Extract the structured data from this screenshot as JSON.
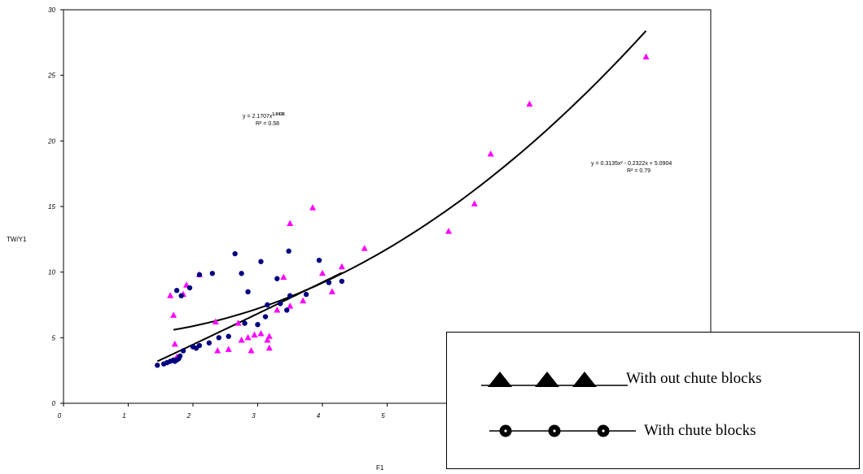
{
  "chart_data": {
    "type": "scatter",
    "title": "",
    "xlabel": "F1",
    "ylabel": "TW/Y1",
    "xlim": [
      0,
      10
    ],
    "ylim": [
      0,
      30
    ],
    "xticks": [
      "0",
      "1",
      "2",
      "3",
      "4",
      "5"
    ],
    "yticks": [
      "0",
      "5",
      "10",
      "15",
      "20",
      "25",
      "30"
    ],
    "grid": false,
    "legend_placement": "bottom-right",
    "series": [
      {
        "name": "With out chute blocks",
        "marker": "triangle",
        "color": "#ff00ff",
        "points": [
          [
            1.65,
            8.2
          ],
          [
            1.7,
            6.7
          ],
          [
            1.72,
            4.5
          ],
          [
            1.75,
            3.5
          ],
          [
            1.85,
            8.3
          ],
          [
            1.9,
            9.0
          ],
          [
            2.1,
            9.8
          ],
          [
            2.35,
            6.2
          ],
          [
            2.38,
            4.0
          ],
          [
            2.55,
            4.1
          ],
          [
            2.7,
            6.1
          ],
          [
            2.75,
            4.8
          ],
          [
            2.85,
            5.0
          ],
          [
            2.9,
            4.0
          ],
          [
            2.95,
            5.2
          ],
          [
            3.05,
            5.3
          ],
          [
            3.15,
            4.8
          ],
          [
            3.18,
            5.1
          ],
          [
            3.18,
            4.2
          ],
          [
            3.3,
            7.1
          ],
          [
            3.4,
            9.6
          ],
          [
            3.5,
            13.7
          ],
          [
            3.5,
            7.4
          ],
          [
            3.7,
            7.8
          ],
          [
            3.85,
            14.9
          ],
          [
            4.0,
            9.9
          ],
          [
            4.15,
            8.5
          ],
          [
            4.3,
            10.4
          ],
          [
            4.65,
            11.8
          ],
          [
            5.95,
            13.1
          ],
          [
            6.35,
            15.2
          ],
          [
            6.6,
            19.0
          ],
          [
            7.2,
            22.8
          ],
          [
            9.0,
            26.4
          ]
        ]
      },
      {
        "name": "With chute blocks",
        "marker": "circle",
        "color": "#000080",
        "points": [
          [
            1.45,
            2.9
          ],
          [
            1.55,
            3.0
          ],
          [
            1.6,
            3.1
          ],
          [
            1.65,
            3.2
          ],
          [
            1.7,
            3.3
          ],
          [
            1.72,
            3.2
          ],
          [
            1.75,
            3.3
          ],
          [
            1.78,
            3.4
          ],
          [
            1.8,
            3.6
          ],
          [
            1.85,
            4.0
          ],
          [
            1.75,
            8.6
          ],
          [
            1.82,
            8.2
          ],
          [
            2.0,
            4.3
          ],
          [
            2.05,
            4.2
          ],
          [
            1.95,
            8.8
          ],
          [
            2.1,
            4.4
          ],
          [
            2.1,
            9.8
          ],
          [
            2.25,
            4.6
          ],
          [
            2.3,
            9.9
          ],
          [
            2.4,
            5.0
          ],
          [
            2.55,
            5.1
          ],
          [
            2.65,
            11.4
          ],
          [
            2.75,
            9.9
          ],
          [
            2.8,
            6.1
          ],
          [
            2.85,
            8.5
          ],
          [
            3.0,
            6.0
          ],
          [
            3.05,
            10.8
          ],
          [
            3.12,
            6.6
          ],
          [
            3.15,
            7.5
          ],
          [
            3.3,
            9.5
          ],
          [
            3.35,
            7.6
          ],
          [
            3.45,
            7.1
          ],
          [
            3.48,
            11.6
          ],
          [
            3.5,
            8.2
          ],
          [
            3.75,
            8.3
          ],
          [
            3.95,
            10.9
          ],
          [
            4.1,
            9.2
          ],
          [
            4.3,
            9.3
          ]
        ]
      }
    ],
    "trendlines": [
      {
        "series": "With out chute blocks",
        "kind": "polynomial",
        "equation": "y = 0.3135x² - 0.2322x + 5.0904",
        "r2": "R² = 0.79",
        "coef": [
          0.3135,
          -0.2322,
          5.0904
        ],
        "x_range": [
          1.7,
          9.0
        ]
      },
      {
        "series": "With chute blocks",
        "kind": "power",
        "equation": "y = 2.1707x",
        "exponent_label": "1.0436",
        "r2": "R² = 0.58",
        "coef": [
          2.1707,
          1.0436
        ],
        "x_range": [
          1.45,
          4.3
        ]
      }
    ],
    "legend": {
      "items": [
        {
          "label": "With out chute blocks",
          "marker": "triangle"
        },
        {
          "label": "With chute blocks",
          "marker": "circle"
        }
      ]
    }
  }
}
